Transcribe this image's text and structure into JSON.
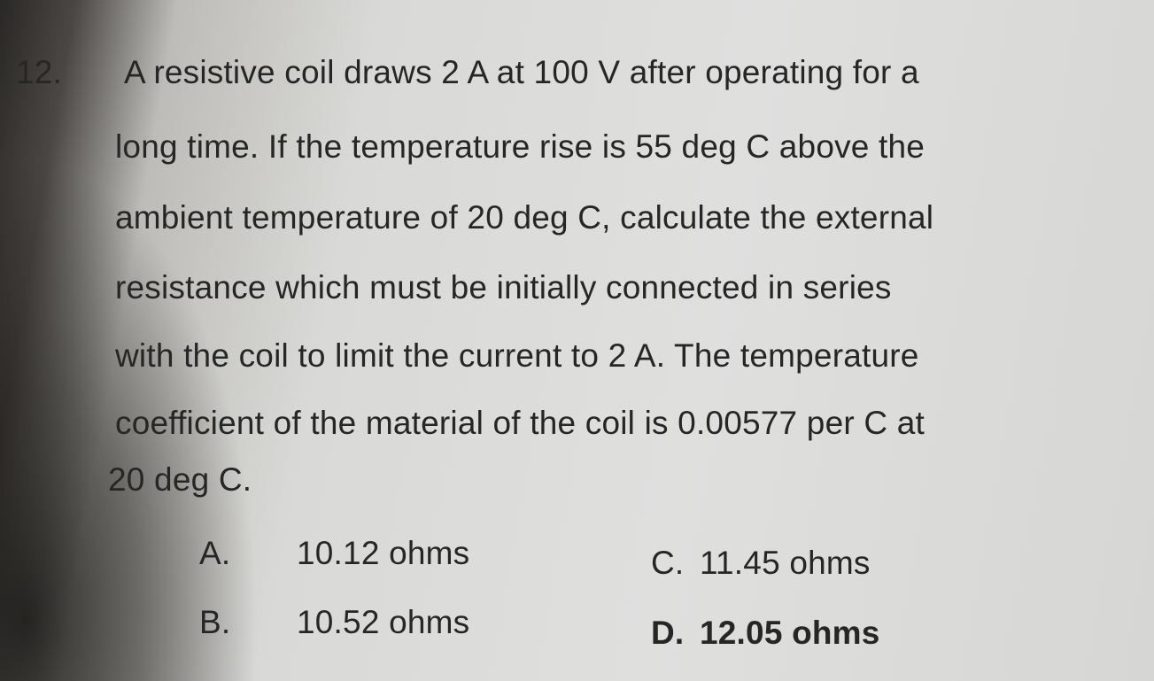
{
  "question": {
    "number": "12.",
    "lines": [
      "A resistive coil draws 2 A at 100 V after operating for a",
      "long time. If the temperature rise is 55 deg C above the",
      "ambient temperature of 20 deg C, calculate the external",
      "resistance which must be initially connected in series",
      "with the coil to limit the current to 2 A. The temperature",
      "coefficient of the material of the coil is 0.00577 per C at",
      "20 deg C."
    ]
  },
  "options": [
    {
      "label": "A.",
      "text": "10.12 ohms"
    },
    {
      "label": "B.",
      "text": "10.52 ohms"
    },
    {
      "label": "C.",
      "text": "11.45 ohms"
    },
    {
      "label": "D.",
      "text": "12.05 ohms"
    }
  ]
}
